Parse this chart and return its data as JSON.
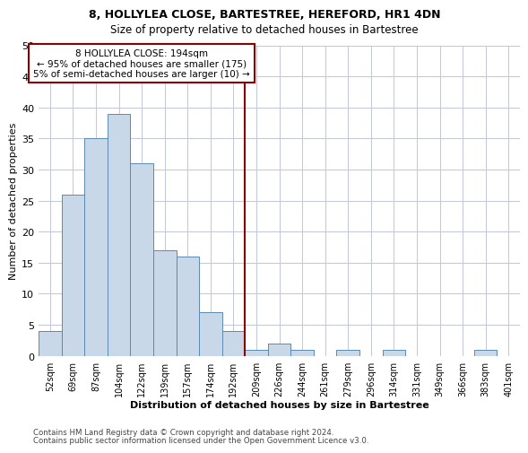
{
  "title": "8, HOLLYLEA CLOSE, BARTESTREE, HEREFORD, HR1 4DN",
  "subtitle": "Size of property relative to detached houses in Bartestree",
  "xlabel": "Distribution of detached houses by size in Bartestree",
  "ylabel": "Number of detached properties",
  "bin_labels": [
    "52sqm",
    "69sqm",
    "87sqm",
    "104sqm",
    "122sqm",
    "139sqm",
    "157sqm",
    "174sqm",
    "192sqm",
    "209sqm",
    "226sqm",
    "244sqm",
    "261sqm",
    "279sqm",
    "296sqm",
    "314sqm",
    "331sqm",
    "349sqm",
    "366sqm",
    "383sqm",
    "401sqm"
  ],
  "bar_values": [
    4,
    26,
    35,
    39,
    31,
    17,
    16,
    7,
    4,
    1,
    2,
    1,
    0,
    1,
    0,
    1,
    0,
    0,
    0,
    1,
    0
  ],
  "bar_color": "#c8d8e8",
  "bar_edge_color": "#5a8ab0",
  "vline_x": 8,
  "vline_color": "#8b0000",
  "annotation_text": "8 HOLLYLEA CLOSE: 194sqm\n← 95% of detached houses are smaller (175)\n5% of semi-detached houses are larger (10) →",
  "annotation_box_color": "#8b0000",
  "annotation_text_color": "#000000",
  "ylim": [
    0,
    50
  ],
  "yticks": [
    0,
    5,
    10,
    15,
    20,
    25,
    30,
    35,
    40,
    45,
    50
  ],
  "footer1": "Contains HM Land Registry data © Crown copyright and database right 2024.",
  "footer2": "Contains public sector information licensed under the Open Government Licence v3.0.",
  "background_color": "#ffffff",
  "grid_color": "#c0c8d8",
  "title_fontsize": 9,
  "subtitle_fontsize": 8.5
}
